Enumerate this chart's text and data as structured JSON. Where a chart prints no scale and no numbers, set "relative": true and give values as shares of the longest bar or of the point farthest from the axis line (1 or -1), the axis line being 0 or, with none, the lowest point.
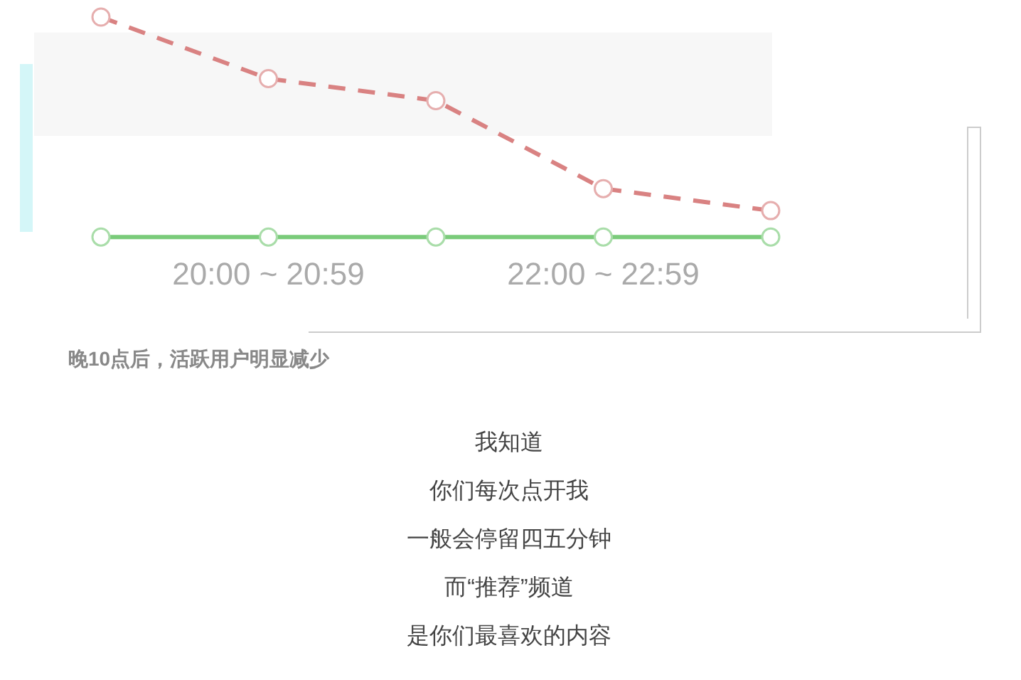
{
  "chart_data": {
    "type": "line",
    "relative": true,
    "tick_labels": "x",
    "categories": [
      null,
      "20:00 ~ 20:59",
      null,
      "22:00 ~ 22:59",
      null
    ],
    "series": [
      {
        "color": "#d98282",
        "values": [
          1,
          0.72,
          0.62,
          0.22,
          0.12
        ],
        "line_style": "dashed",
        "marker": "circle"
      },
      {
        "color": "#7acb7a",
        "values": [
          0,
          0,
          0,
          0,
          0
        ],
        "line_style": "solid",
        "marker": "circle"
      }
    ],
    "bands": [
      {
        "axis": "y",
        "from": 0.46,
        "to": 0.93,
        "color": "#f7f7f7"
      }
    ],
    "annotations": [
      "晚10点后，活跃用户明显减少",
      "我知道",
      "你们每次点开我",
      "一般会停留四五分钟",
      "而“推荐”频道",
      "是你们最喜欢的内容"
    ]
  }
}
